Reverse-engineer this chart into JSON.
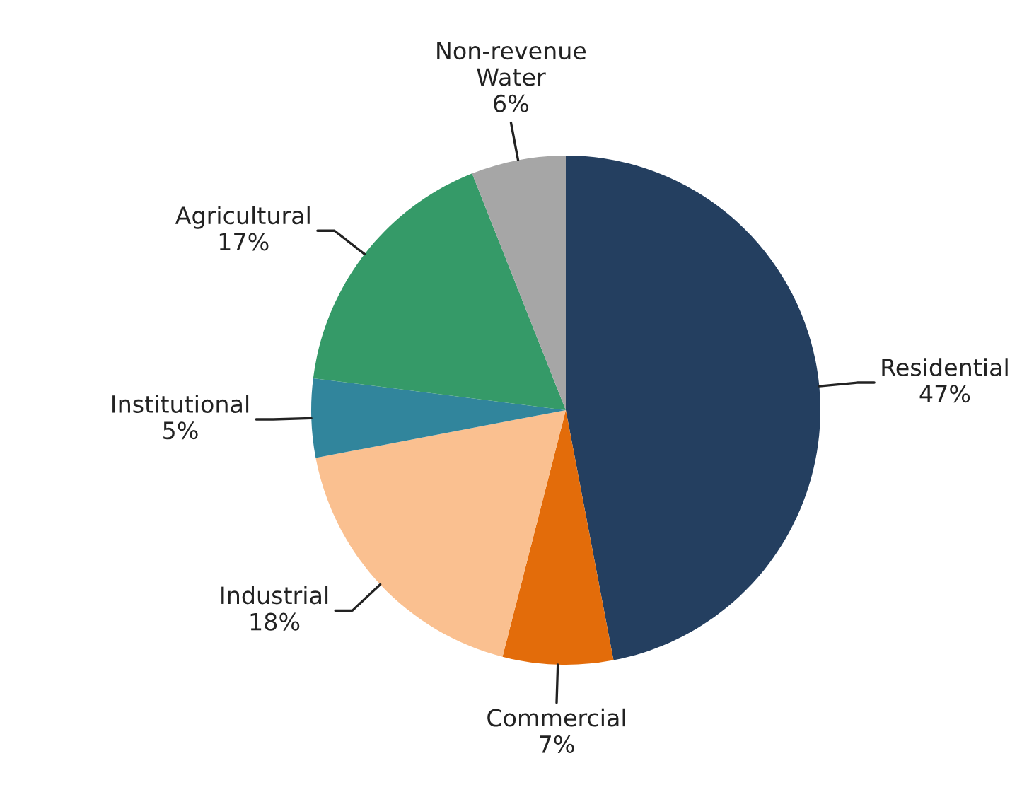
{
  "chart_data": {
    "type": "pie",
    "categories": [
      "Residential",
      "Commercial",
      "Industrial",
      "Institutional",
      "Agricultural",
      "Non-revenue\nWater"
    ],
    "values": [
      47,
      7,
      18,
      5,
      17,
      6
    ],
    "value_labels": [
      "47%",
      "7%",
      "18%",
      "5%",
      "17%",
      "6%"
    ],
    "colors": [
      "#243f60",
      "#e36c0a",
      "#fac090",
      "#31859c",
      "#359a68",
      "#a6a6a6"
    ],
    "legend": false
  }
}
